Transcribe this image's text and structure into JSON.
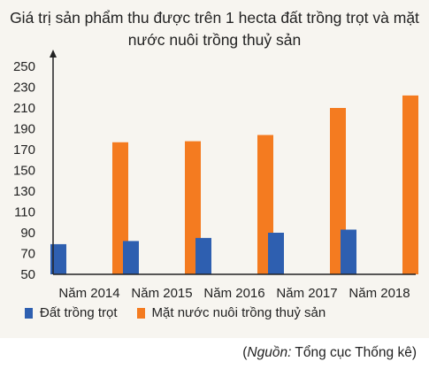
{
  "chart_data": {
    "type": "bar",
    "title": "Giá trị sản phẩm thu được trên 1 hecta đất trồng trọt và mặt nước nuôi trồng thuỷ sản",
    "categories": [
      "Năm 2014",
      "Năm 2015",
      "Năm 2016",
      "Năm 2017",
      "Năm 2018"
    ],
    "series": [
      {
        "name": "Đất trồng trọt",
        "values": [
          79,
          82,
          85,
          90,
          93
        ],
        "color": "#2e5fb0"
      },
      {
        "name": "Mặt nước nuôi trồng thuỷ sản",
        "values": [
          177,
          178,
          184,
          210,
          222
        ],
        "color": "#f47b20"
      }
    ],
    "yticks": [
      50,
      70,
      90,
      110,
      130,
      150,
      170,
      190,
      210,
      230,
      250
    ],
    "ylim": [
      50,
      250
    ],
    "xlabel": "",
    "ylabel": "",
    "grid": false,
    "legend_position": "bottom"
  },
  "source": {
    "label": "Nguồn:",
    "text": " Tổng cục Thống kê"
  }
}
